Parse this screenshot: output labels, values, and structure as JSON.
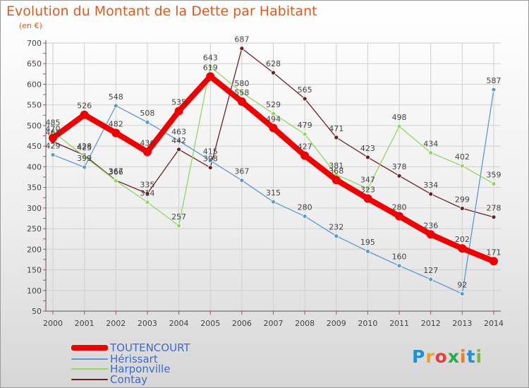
{
  "title": "Evolution du Montant de la Dette par Habitant",
  "subtitle": "(en €)",
  "logo": {
    "text": "Proxiti",
    "colors": [
      "#1f8fd6",
      "#f0a020",
      "#e04040",
      "#2ba84a",
      "#f07a20",
      "#1f8fd6",
      "#7ab642"
    ]
  },
  "chart_data": {
    "type": "line",
    "x": [
      "2000",
      "2001",
      "2002",
      "2003",
      "2004",
      "2005",
      "2006",
      "2007",
      "2008",
      "2009",
      "2010",
      "2011",
      "2012",
      "2013",
      "2014"
    ],
    "ylim": [
      50,
      700
    ],
    "yticks": [
      "50",
      "100",
      "150",
      "200",
      "250",
      "300",
      "350",
      "400",
      "450",
      "500",
      "550",
      "600",
      "650",
      "700"
    ],
    "grid": true,
    "legend_position": "bottom-left",
    "series": [
      {
        "name": "TOUTENCOURT",
        "color": "#f00000",
        "values": [
          470,
          526,
          482,
          436,
          535,
          619,
          558,
          494,
          427,
          368,
          323,
          280,
          236,
          202,
          171
        ],
        "labels": [
          "470",
          "526",
          "482",
          "436",
          "535",
          "619",
          "558",
          "494",
          "427",
          "368",
          "323",
          "280",
          "236",
          "202",
          "171"
        ]
      },
      {
        "name": "Hérissart",
        "color": "#5a9ad0",
        "values": [
          429,
          399,
          548,
          508,
          463,
          415,
          367,
          315,
          280,
          232,
          195,
          160,
          127,
          92,
          587
        ],
        "labels": [
          "429",
          "399",
          "548",
          "508",
          "463",
          "415",
          "367",
          "315",
          "280",
          "232",
          "195",
          "160",
          "127",
          "92",
          "587"
        ]
      },
      {
        "name": "Harponville",
        "color": "#90d860",
        "values": [
          485,
          425,
          366,
          314,
          257,
          643,
          580,
          529,
          479,
          381,
          347,
          498,
          434,
          402,
          359
        ],
        "labels": [
          "485",
          "425",
          "366",
          "314",
          "257",
          "643",
          "580",
          "529",
          "479",
          "381",
          "347",
          "498",
          "434",
          "402",
          "359"
        ]
      },
      {
        "name": "Contay",
        "color": "#6b2020",
        "values": [
          461,
          428,
          367,
          335,
          442,
          398,
          687,
          628,
          565,
          471,
          423,
          378,
          334,
          299,
          278
        ],
        "labels": [
          "461",
          "428",
          "367",
          "335",
          "442",
          "398",
          "687",
          "628",
          "565",
          "471",
          "423",
          "378",
          "334",
          "299",
          "278"
        ]
      }
    ]
  }
}
